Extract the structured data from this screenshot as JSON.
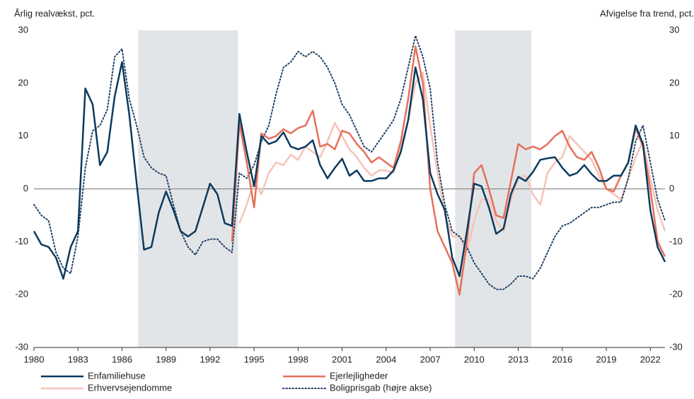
{
  "chart_data": {
    "type": "line",
    "ylabel": "Årlig realvækst, pct.",
    "y2label": "Afvigelse fra trend, pct.",
    "xlim": [
      1980,
      2023
    ],
    "xticks": [
      1980,
      1983,
      1986,
      1989,
      1992,
      1995,
      1998,
      2001,
      2004,
      2007,
      2010,
      2013,
      2016,
      2019,
      2022
    ],
    "ylim": [
      -30,
      30
    ],
    "yticks": [
      -30,
      -20,
      -10,
      0,
      10,
      20,
      30
    ],
    "y2lim": [
      -30,
      30
    ],
    "y2ticks": [
      -30,
      -20,
      -10,
      0,
      10,
      20,
      30
    ],
    "shaded_periods": [
      [
        1987.1,
        1993.9
      ],
      [
        2008.7,
        2013.9
      ]
    ],
    "shade_color": "#e2e5e7",
    "legend": "bottom",
    "x": [
      1980,
      1980.5,
      1981,
      1981.5,
      1982,
      1982.5,
      1983,
      1983.5,
      1984,
      1984.5,
      1985,
      1985.5,
      1986,
      1986.5,
      1987,
      1987.5,
      1988,
      1988.5,
      1989,
      1989.5,
      1990,
      1990.5,
      1991,
      1991.5,
      1992,
      1992.5,
      1993,
      1993.5,
      1994,
      1994.5,
      1995,
      1995.5,
      1996,
      1996.5,
      1997,
      1997.5,
      1998,
      1998.5,
      1999,
      1999.5,
      2000,
      2000.5,
      2001,
      2001.5,
      2002,
      2002.5,
      2003,
      2003.5,
      2004,
      2004.5,
      2005,
      2005.5,
      2006,
      2006.5,
      2007,
      2007.5,
      2008,
      2008.5,
      2009,
      2009.5,
      2010,
      2010.5,
      2011,
      2011.5,
      2012,
      2012.5,
      2013,
      2013.5,
      2014,
      2014.5,
      2015,
      2015.5,
      2016,
      2016.5,
      2017,
      2017.5,
      2018,
      2018.5,
      2019,
      2019.5,
      2020,
      2020.5,
      2021,
      2021.5,
      2022,
      2022.5,
      2023
    ],
    "series": [
      {
        "name": "Enfamiliehuse",
        "color": "#0b3a5e",
        "style": "solid",
        "width": 2.5,
        "values": [
          -8,
          -10.5,
          -11,
          -13,
          -17,
          -11,
          -8,
          19,
          16,
          4.5,
          7,
          17.5,
          24,
          14,
          1,
          -11.5,
          -11,
          -4.5,
          -0.5,
          -4,
          -8,
          -9,
          -8,
          -3.5,
          1,
          -1,
          -6.5,
          -7,
          14.2,
          7,
          0.5,
          10,
          8.5,
          9,
          10.7,
          8,
          7.5,
          8,
          9.2,
          4.5,
          2,
          4,
          5.7,
          2.5,
          3.5,
          1.5,
          1.5,
          2,
          2,
          3.5,
          7,
          13,
          23,
          17,
          3,
          -1,
          -4,
          -13,
          -16.5,
          -8,
          1,
          0.5,
          -3.5,
          -8.5,
          -7.5,
          -1,
          2.3,
          1.5,
          3.2,
          5.5,
          5.8,
          6,
          4,
          2.5,
          3,
          4.5,
          2.8,
          1.5,
          1.5,
          2.5,
          2.5,
          5,
          12,
          8.5,
          -4,
          -11,
          -13.8
        ]
      },
      {
        "name": "Ejerlejligheder",
        "color": "#e5705a",
        "style": "solid",
        "width": 2.5,
        "values": [
          null,
          null,
          null,
          null,
          null,
          null,
          null,
          null,
          null,
          null,
          null,
          null,
          null,
          null,
          null,
          null,
          null,
          null,
          null,
          null,
          null,
          null,
          null,
          null,
          null,
          null,
          null,
          -10,
          12.5,
          5,
          -3.5,
          10.5,
          9.5,
          10,
          11.3,
          10.5,
          11.5,
          12,
          14.8,
          8,
          8.5,
          7.5,
          11,
          10.5,
          8.5,
          7,
          5,
          6,
          5,
          4,
          9,
          17,
          27,
          20,
          0,
          -8,
          -11,
          -14,
          -20,
          -10,
          3,
          4.5,
          0,
          -5,
          -5.5,
          1.5,
          8.5,
          7.5,
          8,
          7.5,
          8.5,
          10,
          11,
          8,
          6,
          5.5,
          7,
          4,
          0,
          -0.5,
          2.5,
          5,
          11.5,
          8,
          0,
          -10,
          -12.8
        ]
      },
      {
        "name": "Erhvervsejendomme",
        "color": "#f5c3b8",
        "style": "solid",
        "width": 2.5,
        "values": [
          null,
          null,
          null,
          null,
          null,
          null,
          null,
          null,
          null,
          null,
          null,
          null,
          null,
          null,
          null,
          null,
          null,
          null,
          null,
          null,
          null,
          null,
          null,
          null,
          null,
          null,
          null,
          null,
          -6.5,
          -3,
          1.5,
          -1,
          3,
          5,
          4.5,
          6.5,
          5.5,
          8,
          7,
          6,
          9,
          12.5,
          10,
          7.5,
          6,
          4,
          2.5,
          3.5,
          3.5,
          3,
          8,
          13,
          20,
          22,
          12,
          3,
          -5,
          -9,
          -9,
          -12,
          -6,
          -2,
          -2,
          -6,
          -8,
          -2,
          2,
          2.5,
          -1,
          -3,
          3,
          5,
          6,
          10,
          8.5,
          7,
          5.5,
          2.5,
          0,
          -1,
          -2,
          2,
          6,
          9,
          2,
          -4,
          -8
        ]
      },
      {
        "name": "Boligprisgab (højre akse)",
        "color": "#1f3f66",
        "style": "dotted",
        "width": 2,
        "axis": "y2",
        "values": [
          -3,
          -5,
          -6,
          -12,
          -15,
          -16,
          -9,
          4,
          11,
          12,
          15,
          25,
          26.5,
          17,
          12,
          6,
          4,
          3,
          2.5,
          -3,
          -8,
          -11,
          -12.5,
          -10,
          -9.5,
          -9.5,
          -11,
          -12,
          3,
          2,
          4.5,
          9,
          12,
          18,
          23,
          24,
          26,
          25,
          26,
          25,
          23,
          20,
          16,
          14,
          11,
          8,
          7,
          9,
          11,
          13,
          17,
          23,
          29,
          25,
          19,
          5,
          -3,
          -8,
          -9,
          -11,
          -14,
          -16,
          -18,
          -19,
          -19,
          -18,
          -16.5,
          -16.5,
          -17,
          -15,
          -12,
          -9,
          -7,
          -6.5,
          -5.5,
          -4.5,
          -3.5,
          -3.5,
          -3,
          -2.5,
          -2.5,
          2,
          9,
          12,
          5,
          -2,
          -6
        ]
      }
    ]
  }
}
